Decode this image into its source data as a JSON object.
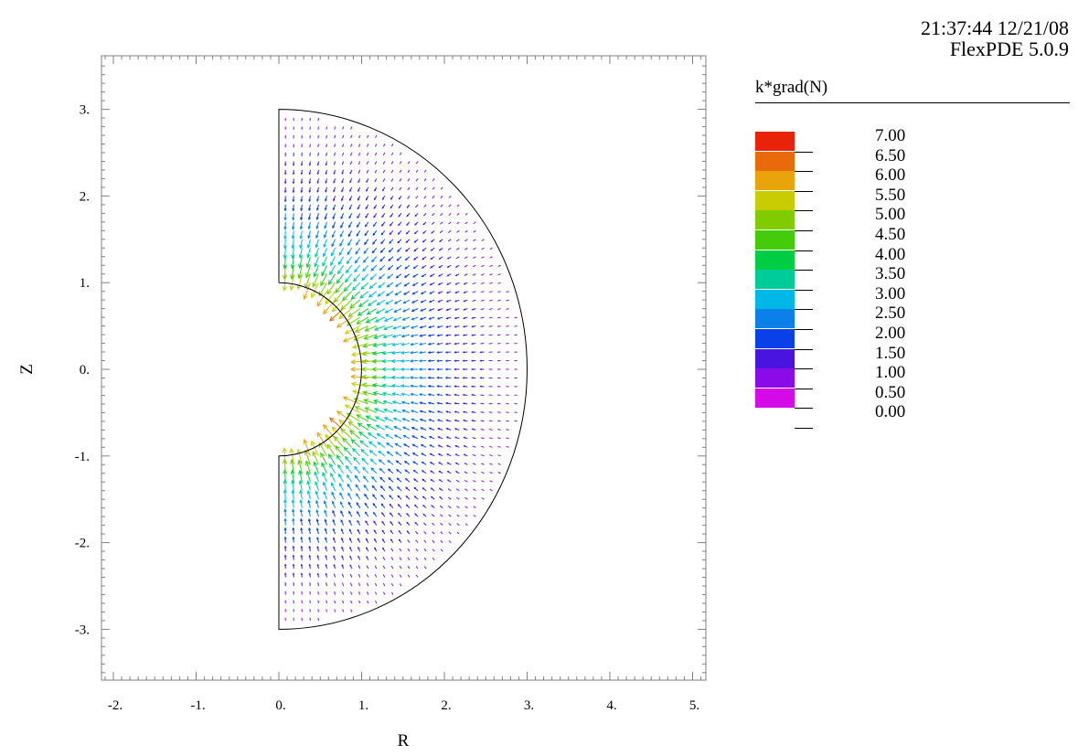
{
  "header": {
    "timestamp": "21:37:44 12/21/08",
    "version": "FlexPDE 5.0.9"
  },
  "chart_data": {
    "type": "vector-field",
    "title": "k*grad(N)",
    "xlabel": "R",
    "ylabel": "Z",
    "xlim": [
      -2.1,
      5.15
    ],
    "ylim": [
      -3.6,
      3.6
    ],
    "xticks": [
      -2,
      -1,
      0,
      1,
      2,
      3,
      4,
      5
    ],
    "xtick_labels": [
      "-2.",
      "-1.",
      "0.",
      "1.",
      "2.",
      "3.",
      "4.",
      "5."
    ],
    "yticks": [
      3,
      2,
      1,
      0,
      -1,
      -2,
      -3
    ],
    "ytick_labels": [
      "3.",
      "2.",
      "1.",
      "0.",
      "-1.",
      "-2.",
      "-3."
    ],
    "domain": {
      "outer_radius": 3,
      "inner_radius": 1,
      "r_min": 0
    },
    "legend": {
      "title": "k*grad(N)",
      "labels": [
        "7.00",
        "6.50",
        "6.00",
        "5.50",
        "5.00",
        "4.50",
        "4.00",
        "3.50",
        "3.00",
        "2.50",
        "2.00",
        "1.50",
        "1.00",
        "0.50",
        "0.00"
      ],
      "colors": [
        "#e8230a",
        "#e86a0a",
        "#e8a40a",
        "#c8cc00",
        "#80cc00",
        "#44cc0a",
        "#00cc44",
        "#00cc99",
        "#00b8e8",
        "#0a80e8",
        "#0a40e8",
        "#4a14e0",
        "#8a0ae8",
        "#d40ae8"
      ]
    }
  }
}
